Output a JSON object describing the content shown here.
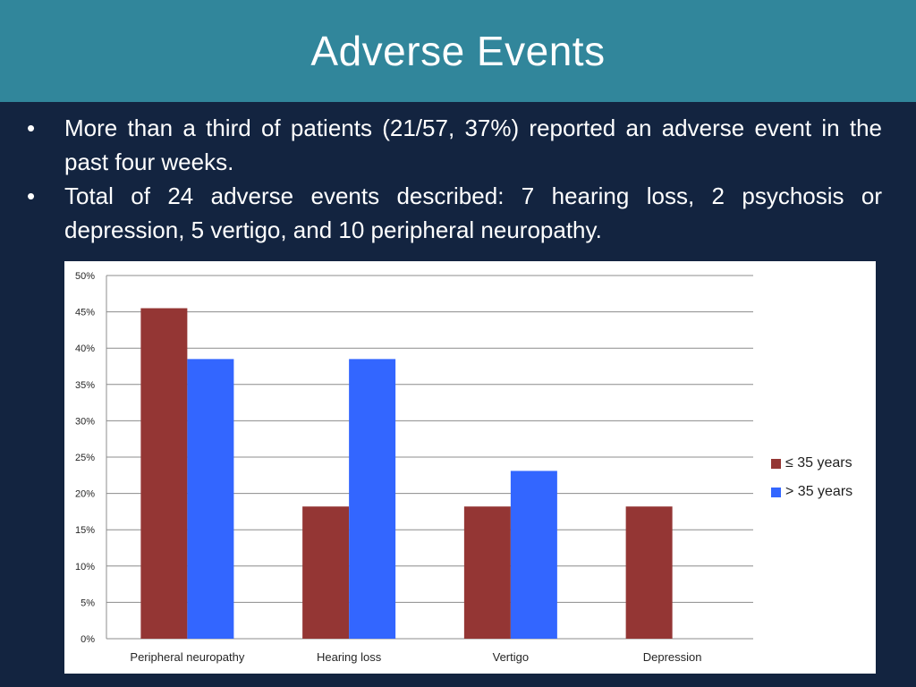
{
  "slide": {
    "title": "Adverse Events",
    "bullets": [
      "More than a third of patients (21/57, 37%) reported an adverse event in the past four weeks.",
      "Total of 24 adverse events described: 7 hearing loss, 2 psychosis or depression, 5 vertigo, and 10 peripheral neuropathy."
    ],
    "bullet_glyph": "•"
  },
  "colors": {
    "title_bar": "#31869b",
    "background": "#132440",
    "series_1": "#943634",
    "series_2": "#3366ff"
  },
  "chart_data": {
    "type": "bar",
    "categories": [
      "Peripheral neuropathy",
      "Hearing loss",
      "Vertigo",
      "Depression"
    ],
    "series": [
      {
        "name": "≤ 35 years",
        "values": [
          45.5,
          18.2,
          18.2,
          18.2
        ],
        "color": "#943634"
      },
      {
        "name": "> 35 years",
        "values": [
          38.5,
          38.5,
          23.1,
          0
        ],
        "color": "#3366ff"
      }
    ],
    "ylim": [
      0,
      50
    ],
    "yticks": [
      "0%",
      "5%",
      "10%",
      "15%",
      "20%",
      "25%",
      "30%",
      "35%",
      "40%",
      "45%",
      "50%"
    ],
    "grid": true,
    "legend_position": "right"
  }
}
